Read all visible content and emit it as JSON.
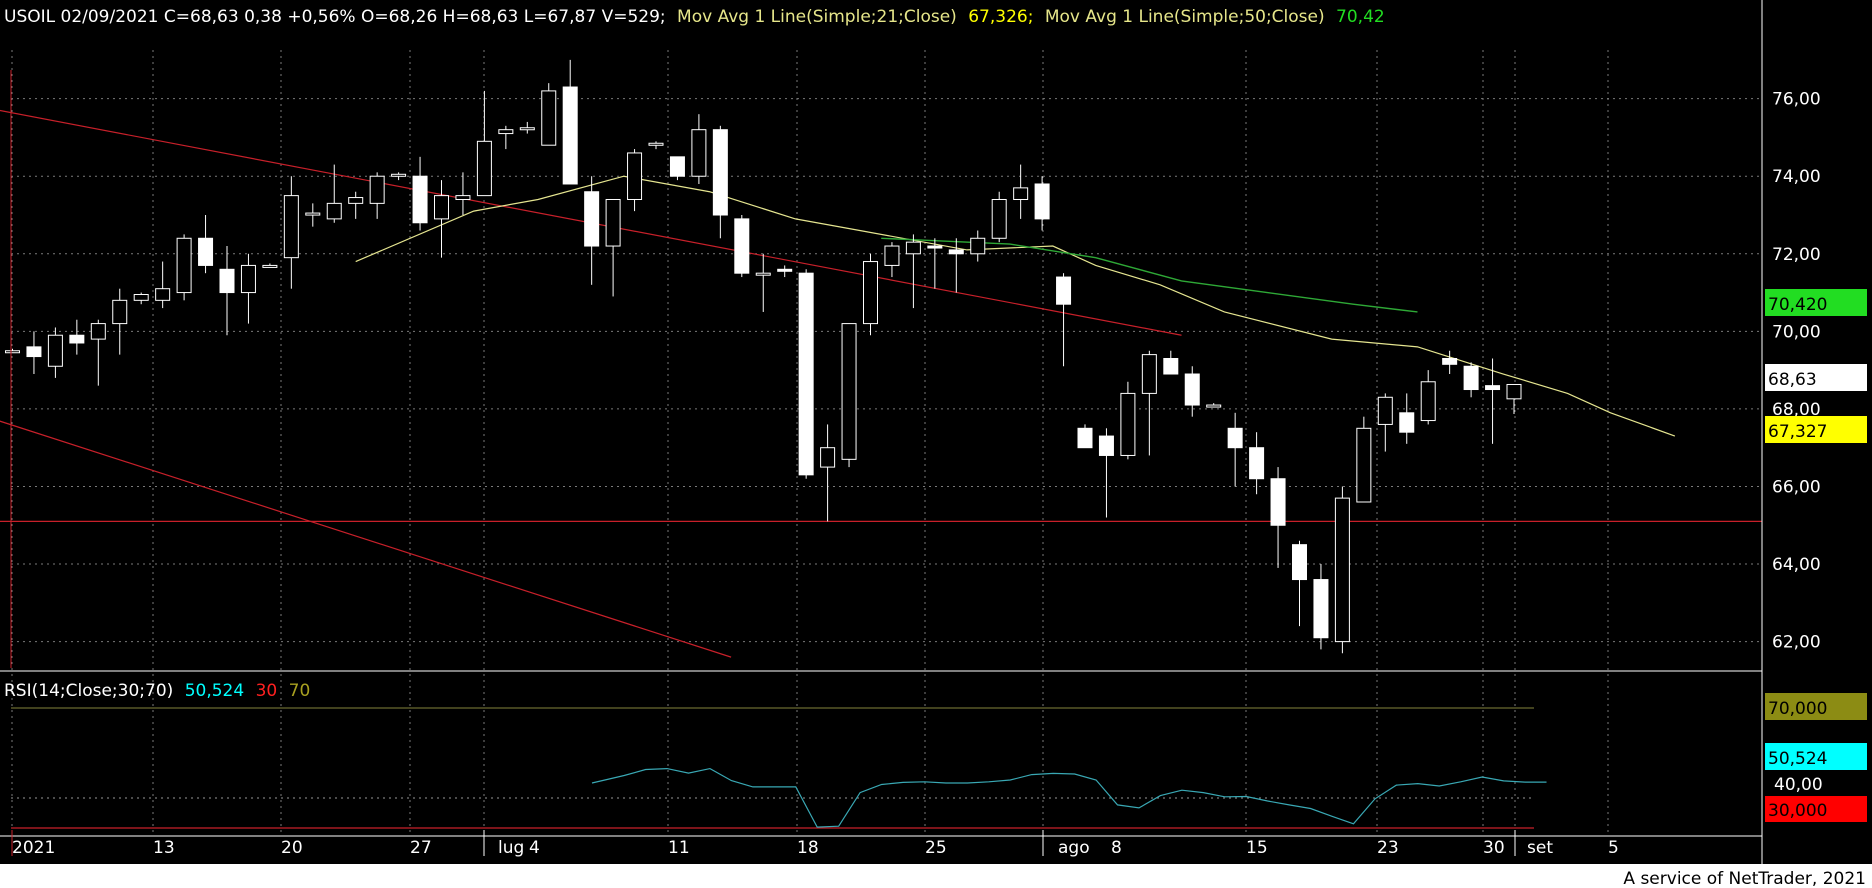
{
  "header": {
    "instrument": "USOIL 02/09/2021 C=68,63 0,38 +0,56% O=68,26 H=68,63 L=67,87 V=529;",
    "ma21_label": "Mov Avg 1 Line(Simple;21;Close)",
    "ma21_value": "67,326;",
    "ma50_label": "Mov Avg 1 Line(Simple;50;Close)",
    "ma50_value": "70,42"
  },
  "rsi_header": {
    "label": "RSI(14;Close;30;70)",
    "value": "50,524",
    "low": "30",
    "high": "70"
  },
  "footer": {
    "credit": "A service of NetTrader, 2021"
  },
  "badges": {
    "ma50": "70,420",
    "close": "68,63",
    "ma21": "67,327",
    "rsi_high": "70,000",
    "rsi_value": "50,524",
    "rsi_mid": "40,00",
    "rsi_low": "30,000"
  },
  "colors": {
    "background": "#000000",
    "grid": "#7a7a7a",
    "trendline": "#c8202a",
    "ma21": "#e5e590",
    "ma50": "#2ea836",
    "rsi": "#39a8b4",
    "candle_up": "#ffffff",
    "candle_down": "#ffffff",
    "badge_ma50": "#22dd22",
    "badge_ma21": "#ffff00",
    "badge_rsi_high": "#8c8c14",
    "badge_rsi_value": "#00ffff",
    "badge_rsi_low": "#ff0000"
  },
  "chart_data": {
    "type": "candlestick",
    "title": "USOIL",
    "price_axis": {
      "ticks": [
        "76,00",
        "74,00",
        "72,00",
        "70,00",
        "68,00",
        "66,00",
        "64,00",
        "62,00"
      ],
      "ylim": [
        61.5,
        77.1
      ]
    },
    "x_axis": {
      "tick_labels": [
        "2021",
        "13",
        "20",
        "27",
        "lug",
        "4",
        "11",
        "18",
        "25",
        "ago",
        "8",
        "15",
        "23",
        "30",
        "set",
        "5"
      ]
    },
    "candles": [
      {
        "o": 69.5,
        "h": 69.55,
        "l": 69.45,
        "c": 69.5
      },
      {
        "o": 69.6,
        "h": 70.0,
        "l": 68.9,
        "c": 69.35
      },
      {
        "o": 69.1,
        "h": 70.1,
        "l": 68.8,
        "c": 69.9
      },
      {
        "o": 69.9,
        "h": 70.3,
        "l": 69.4,
        "c": 69.7
      },
      {
        "o": 69.8,
        "h": 70.3,
        "l": 68.6,
        "c": 70.2
      },
      {
        "o": 70.2,
        "h": 71.1,
        "l": 69.4,
        "c": 70.8
      },
      {
        "o": 70.8,
        "h": 71.0,
        "l": 70.7,
        "c": 70.95
      },
      {
        "o": 70.8,
        "h": 71.8,
        "l": 70.6,
        "c": 71.1
      },
      {
        "o": 71.0,
        "h": 72.5,
        "l": 70.8,
        "c": 72.4
      },
      {
        "o": 72.4,
        "h": 73.0,
        "l": 71.5,
        "c": 71.7
      },
      {
        "o": 71.6,
        "h": 72.2,
        "l": 69.9,
        "c": 71.0
      },
      {
        "o": 71.0,
        "h": 72.0,
        "l": 70.2,
        "c": 71.7
      },
      {
        "o": 71.7,
        "h": 71.75,
        "l": 71.65,
        "c": 71.7
      },
      {
        "o": 71.9,
        "h": 74.0,
        "l": 71.1,
        "c": 73.5
      },
      {
        "o": 73.0,
        "h": 73.3,
        "l": 72.7,
        "c": 73.05
      },
      {
        "o": 72.9,
        "h": 74.3,
        "l": 72.8,
        "c": 73.3
      },
      {
        "o": 73.3,
        "h": 73.6,
        "l": 72.9,
        "c": 73.45
      },
      {
        "o": 73.3,
        "h": 74.1,
        "l": 72.9,
        "c": 74.0
      },
      {
        "o": 74.0,
        "h": 74.1,
        "l": 73.9,
        "c": 74.05
      },
      {
        "o": 74.0,
        "h": 74.5,
        "l": 72.6,
        "c": 72.8
      },
      {
        "o": 72.9,
        "h": 73.9,
        "l": 71.9,
        "c": 73.5
      },
      {
        "o": 73.4,
        "h": 74.1,
        "l": 73.0,
        "c": 73.5
      },
      {
        "o": 73.5,
        "h": 76.2,
        "l": 73.5,
        "c": 74.9
      },
      {
        "o": 75.1,
        "h": 75.3,
        "l": 74.7,
        "c": 75.2
      },
      {
        "o": 75.2,
        "h": 75.4,
        "l": 75.1,
        "c": 75.25
      },
      {
        "o": 74.8,
        "h": 76.4,
        "l": 74.8,
        "c": 76.2
      },
      {
        "o": 76.3,
        "h": 77.0,
        "l": 73.8,
        "c": 73.8
      },
      {
        "o": 73.6,
        "h": 74.0,
        "l": 71.2,
        "c": 72.2
      },
      {
        "o": 72.2,
        "h": 73.3,
        "l": 70.9,
        "c": 73.4
      },
      {
        "o": 73.4,
        "h": 74.7,
        "l": 73.1,
        "c": 74.6
      },
      {
        "o": 74.8,
        "h": 74.9,
        "l": 74.7,
        "c": 74.85
      },
      {
        "o": 74.5,
        "h": 74.5,
        "l": 73.9,
        "c": 74.0
      },
      {
        "o": 74.0,
        "h": 75.6,
        "l": 73.8,
        "c": 75.2
      },
      {
        "o": 75.2,
        "h": 75.3,
        "l": 72.4,
        "c": 73.0
      },
      {
        "o": 72.9,
        "h": 73.0,
        "l": 71.4,
        "c": 71.5
      },
      {
        "o": 71.5,
        "h": 72.0,
        "l": 70.5,
        "c": 71.5
      },
      {
        "o": 71.6,
        "h": 71.7,
        "l": 71.4,
        "c": 71.55
      },
      {
        "o": 71.5,
        "h": 71.6,
        "l": 66.2,
        "c": 66.3
      },
      {
        "o": 66.5,
        "h": 67.6,
        "l": 65.1,
        "c": 67.0
      },
      {
        "o": 66.7,
        "h": 70.2,
        "l": 66.5,
        "c": 70.2
      },
      {
        "o": 70.2,
        "h": 72.0,
        "l": 69.9,
        "c": 71.8
      },
      {
        "o": 71.7,
        "h": 72.3,
        "l": 71.4,
        "c": 72.2
      },
      {
        "o": 72.0,
        "h": 72.5,
        "l": 70.6,
        "c": 72.3
      },
      {
        "o": 72.2,
        "h": 72.4,
        "l": 71.1,
        "c": 72.15
      },
      {
        "o": 72.1,
        "h": 72.4,
        "l": 71.0,
        "c": 72.0
      },
      {
        "o": 72.0,
        "h": 72.6,
        "l": 71.8,
        "c": 72.4
      },
      {
        "o": 72.4,
        "h": 73.6,
        "l": 72.3,
        "c": 73.4
      },
      {
        "o": 73.4,
        "h": 74.3,
        "l": 72.9,
        "c": 73.7
      },
      {
        "o": 73.8,
        "h": 74.0,
        "l": 72.6,
        "c": 72.9
      },
      {
        "o": 71.4,
        "h": 71.5,
        "l": 69.1,
        "c": 70.7
      },
      {
        "o": 67.5,
        "h": 67.6,
        "l": 67.0,
        "c": 67.0
      },
      {
        "o": 67.3,
        "h": 67.5,
        "l": 65.2,
        "c": 66.8
      },
      {
        "o": 66.8,
        "h": 68.7,
        "l": 66.7,
        "c": 68.4
      },
      {
        "o": 68.4,
        "h": 69.5,
        "l": 66.8,
        "c": 69.4
      },
      {
        "o": 69.3,
        "h": 69.5,
        "l": 68.9,
        "c": 68.9
      },
      {
        "o": 68.9,
        "h": 69.1,
        "l": 67.8,
        "c": 68.1
      },
      {
        "o": 68.1,
        "h": 68.15,
        "l": 68.05,
        "c": 68.1
      },
      {
        "o": 67.5,
        "h": 67.9,
        "l": 66.0,
        "c": 67.0
      },
      {
        "o": 67.0,
        "h": 67.4,
        "l": 65.8,
        "c": 66.2
      },
      {
        "o": 66.2,
        "h": 66.5,
        "l": 63.9,
        "c": 65.0
      },
      {
        "o": 64.5,
        "h": 64.6,
        "l": 62.4,
        "c": 63.6
      },
      {
        "o": 63.6,
        "h": 64.0,
        "l": 61.8,
        "c": 62.1
      },
      {
        "o": 62.0,
        "h": 66.0,
        "l": 61.7,
        "c": 65.7
      },
      {
        "o": 65.6,
        "h": 67.8,
        "l": 65.6,
        "c": 67.5
      },
      {
        "o": 67.6,
        "h": 68.4,
        "l": 66.9,
        "c": 68.3
      },
      {
        "o": 67.9,
        "h": 68.4,
        "l": 67.1,
        "c": 67.4
      },
      {
        "o": 67.7,
        "h": 69.0,
        "l": 67.6,
        "c": 68.7
      },
      {
        "o": 69.3,
        "h": 69.5,
        "l": 68.9,
        "c": 69.15
      },
      {
        "o": 69.1,
        "h": 69.2,
        "l": 68.3,
        "c": 68.5
      },
      {
        "o": 68.6,
        "h": 69.3,
        "l": 67.1,
        "c": 68.5
      },
      {
        "o": 68.26,
        "h": 68.63,
        "l": 67.87,
        "c": 68.63
      }
    ],
    "ma21": [
      [
        0.0,
        71.8
      ],
      [
        5.5,
        73.1
      ],
      [
        8.5,
        73.4
      ],
      [
        12.5,
        74.0
      ],
      [
        16.5,
        73.6
      ],
      [
        20.5,
        72.9
      ],
      [
        23.5,
        72.6
      ],
      [
        28.5,
        72.1
      ],
      [
        32.5,
        72.2
      ],
      [
        34.5,
        71.7
      ],
      [
        37.5,
        71.2
      ],
      [
        40.5,
        70.5
      ],
      [
        45.5,
        69.8
      ],
      [
        49.5,
        69.6
      ],
      [
        53.5,
        68.9
      ],
      [
        56.5,
        68.4
      ],
      [
        58.5,
        67.9
      ],
      [
        61.5,
        67.3
      ]
    ],
    "ma50": [
      [
        28.5,
        72.4
      ],
      [
        30.5,
        72.35
      ],
      [
        34.5,
        72.25
      ],
      [
        38.5,
        71.9
      ],
      [
        42.5,
        71.3
      ],
      [
        46.5,
        71.0
      ],
      [
        50.5,
        70.7
      ],
      [
        53.5,
        70.5
      ]
    ],
    "trendlines": [
      {
        "from": [
          -13,
          77.0
        ],
        "to": [
          54.5,
          69.9
        ]
      },
      {
        "from": [
          -13,
          69.9
        ],
        "to": [
          33.5,
          61.6
        ]
      }
    ],
    "support_level": 65.1,
    "rsi": {
      "ylim": [
        28,
        76
      ],
      "levels": [
        70,
        40,
        30
      ],
      "points": [
        [
          0,
          45.0
        ],
        [
          1.5,
          47.5
        ],
        [
          2.5,
          49.5
        ],
        [
          3.5,
          49.8
        ],
        [
          4.5,
          48.3
        ],
        [
          5.5,
          49.8
        ],
        [
          6.5,
          45.8
        ],
        [
          7.5,
          43.7
        ],
        [
          8.5,
          43.7
        ],
        [
          9.5,
          43.7
        ],
        [
          10.5,
          30.3
        ],
        [
          11.5,
          30.6
        ],
        [
          12.5,
          41.8
        ],
        [
          13.5,
          44.5
        ],
        [
          14.5,
          45.2
        ],
        [
          15.5,
          45.4
        ],
        [
          16.5,
          45.0
        ],
        [
          17.5,
          45.0
        ],
        [
          18.5,
          45.4
        ],
        [
          19.5,
          46.0
        ],
        [
          20.5,
          47.8
        ],
        [
          21.5,
          48.2
        ],
        [
          22.5,
          48.0
        ],
        [
          23.5,
          46.0
        ],
        [
          24.5,
          37.7
        ],
        [
          25.5,
          36.7
        ],
        [
          26.5,
          40.8
        ],
        [
          27.5,
          42.6
        ],
        [
          28.5,
          41.8
        ],
        [
          29.5,
          40.4
        ],
        [
          30.5,
          40.5
        ],
        [
          31.5,
          39.0
        ],
        [
          32.5,
          37.7
        ],
        [
          33.5,
          36.5
        ],
        [
          34.5,
          33.9
        ],
        [
          35.5,
          31.4
        ],
        [
          36.5,
          39.7
        ],
        [
          37.5,
          44.3
        ],
        [
          38.5,
          44.8
        ],
        [
          39.5,
          44.0
        ],
        [
          40.5,
          45.4
        ],
        [
          41.5,
          47.0
        ],
        [
          42.5,
          45.7
        ],
        [
          43.5,
          45.3
        ],
        [
          44.5,
          45.3
        ]
      ]
    }
  }
}
